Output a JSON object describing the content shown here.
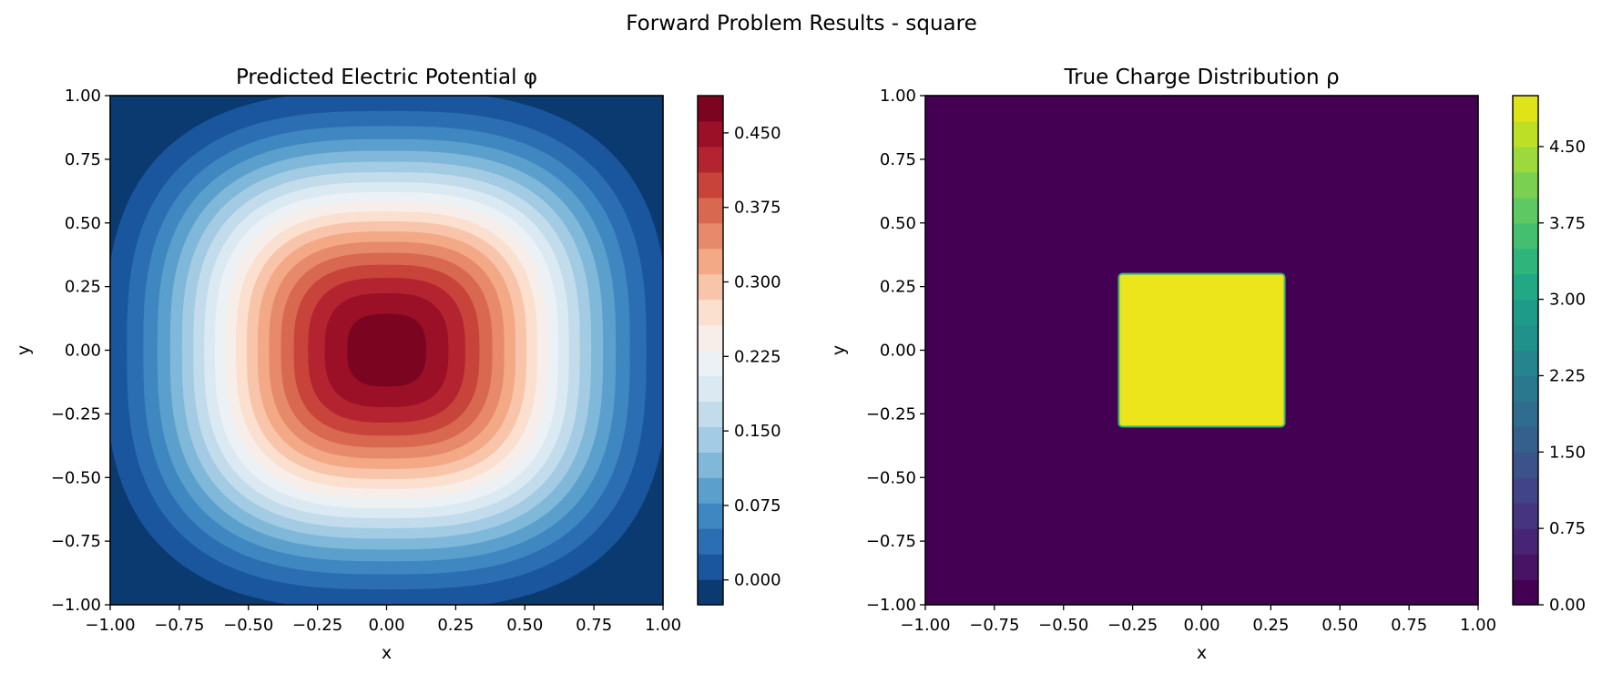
{
  "figure": {
    "suptitle": "Forward Problem Results - square"
  },
  "chart_data": [
    {
      "type": "heatmap",
      "title": "Predicted Electric Potential φ",
      "xlabel": "x",
      "ylabel": "y",
      "xlim": [
        -1.0,
        1.0
      ],
      "ylim": [
        -1.0,
        1.0
      ],
      "xticks": [
        "−1.00",
        "−0.75",
        "−0.50",
        "−0.25",
        "0.00",
        "0.25",
        "0.50",
        "0.75",
        "1.00"
      ],
      "yticks": [
        "−1.00",
        "−0.75",
        "−0.50",
        "−0.25",
        "0.00",
        "0.25",
        "0.50",
        "0.75",
        "1.00"
      ],
      "colormap": "RdBu_r",
      "colorbar": {
        "range": [
          -0.025,
          0.4875
        ],
        "levels": 20,
        "ticks": [
          0.0,
          0.075,
          0.15,
          0.225,
          0.3,
          0.375,
          0.45
        ],
        "tick_labels": [
          "0.000",
          "0.075",
          "0.150",
          "0.225",
          "0.300",
          "0.375",
          "0.450"
        ],
        "colors": [
          "#0b3a70",
          "#1a569e",
          "#2b6eb2",
          "#3f87c0",
          "#5ba0cc",
          "#7fb8d8",
          "#a3cbe3",
          "#c2dcec",
          "#dbe9f2",
          "#ecf1f5",
          "#f7eee9",
          "#fbdfcf",
          "#f8c5ab",
          "#f3a886",
          "#e78a6c",
          "#d96850",
          "#c8443b",
          "#b42330",
          "#9b1027",
          "#7b0520"
        ]
      },
      "field": {
        "kind": "potential",
        "peak_value": 0.48,
        "center": [
          0.0,
          0.0
        ],
        "boundary_value": -0.02
      }
    },
    {
      "type": "heatmap",
      "title": "True Charge Distribution ρ",
      "xlabel": "x",
      "ylabel": "y",
      "xlim": [
        -1.0,
        1.0
      ],
      "ylim": [
        -1.0,
        1.0
      ],
      "xticks": [
        "−1.00",
        "−0.75",
        "−0.50",
        "−0.25",
        "0.00",
        "0.25",
        "0.50",
        "0.75",
        "1.00"
      ],
      "yticks": [
        "−1.00",
        "−0.75",
        "−0.50",
        "−0.25",
        "0.00",
        "0.25",
        "0.50",
        "0.75",
        "1.00"
      ],
      "colormap": "viridis",
      "colorbar": {
        "range": [
          0.0,
          5.0
        ],
        "levels": 20,
        "ticks": [
          0.0,
          0.75,
          1.5,
          2.25,
          3.0,
          3.75,
          4.5
        ],
        "tick_labels": [
          "0.00",
          "0.75",
          "1.50",
          "2.25",
          "3.00",
          "3.75",
          "4.50"
        ],
        "colors": [
          "#440154",
          "#471365",
          "#482475",
          "#463480",
          "#414487",
          "#3b528b",
          "#355f8d",
          "#2f6c8e",
          "#2a788e",
          "#25848e",
          "#21918c",
          "#1e9c89",
          "#22a884",
          "#2fb47c",
          "#44bf70",
          "#5ec962",
          "#7ad151",
          "#9bd93c",
          "#bddf26",
          "#dfe318"
        ]
      },
      "field": {
        "kind": "square",
        "background_value": 0.0,
        "inside_value": 5.0,
        "x_range": [
          -0.3,
          0.3
        ],
        "y_range": [
          -0.3,
          0.3
        ],
        "inside_color": "#ece51b",
        "edge_color": "#35b779"
      }
    }
  ]
}
